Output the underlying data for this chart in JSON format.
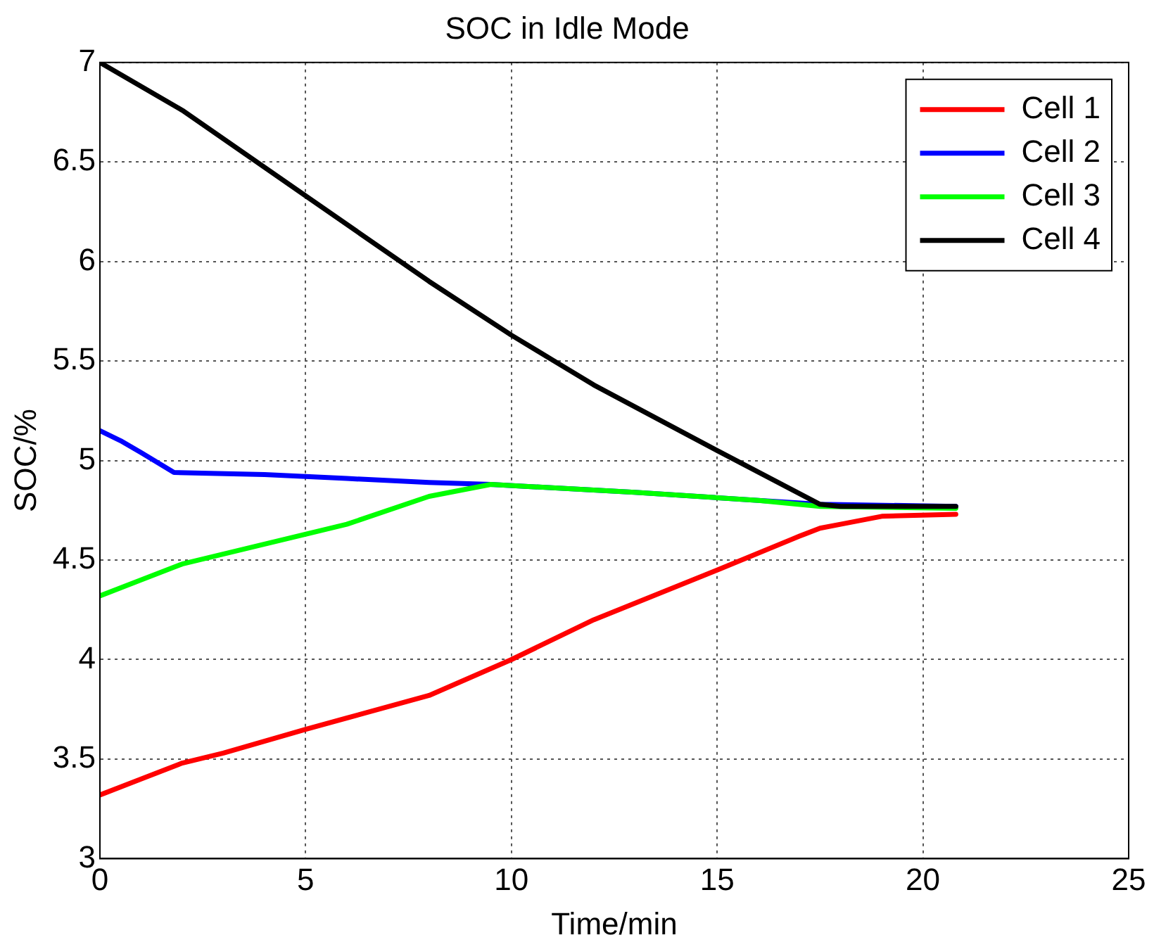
{
  "chart_data": {
    "type": "line",
    "title": "SOC in Idle Mode",
    "xlabel": "Time/min",
    "ylabel": "SOC/%",
    "xlim": [
      0,
      25
    ],
    "xticks": [
      0,
      5,
      10,
      15,
      20,
      25
    ],
    "ylim": [
      3,
      7
    ],
    "yticks": [
      3,
      3.5,
      4,
      4.5,
      5,
      5.5,
      6,
      6.5,
      7
    ],
    "grid": true,
    "legend": "top right",
    "marker": "none",
    "line_style": "solid",
    "series": [
      {
        "name": "Cell 1",
        "color": "#ff0000",
        "x": [
          0,
          1,
          2,
          3,
          5,
          8,
          10,
          12,
          15,
          17,
          17.5,
          18,
          19,
          20.8
        ],
        "values": [
          3.32,
          3.4,
          3.48,
          3.53,
          3.65,
          3.82,
          4.0,
          4.2,
          4.45,
          4.62,
          4.66,
          4.68,
          4.72,
          4.73
        ]
      },
      {
        "name": "Cell 2",
        "color": "#0000ff",
        "x": [
          0,
          0.5,
          1,
          1.8,
          4,
          6,
          8,
          9.5,
          13,
          16,
          17.5,
          20.8
        ],
        "values": [
          5.15,
          5.1,
          5.04,
          4.94,
          4.93,
          4.91,
          4.89,
          4.88,
          4.84,
          4.8,
          4.78,
          4.77
        ]
      },
      {
        "name": "Cell 3",
        "color": "#00ff00",
        "x": [
          0,
          1,
          2,
          4,
          6,
          8,
          9.5,
          13,
          16,
          17.5,
          20.8
        ],
        "values": [
          4.32,
          4.4,
          4.48,
          4.58,
          4.68,
          4.82,
          4.88,
          4.84,
          4.8,
          4.77,
          4.76
        ]
      },
      {
        "name": "Cell 4",
        "color": "#000000",
        "x": [
          0,
          2,
          5,
          8,
          10,
          12,
          15,
          17.5,
          18,
          20.8
        ],
        "values": [
          7.0,
          6.76,
          6.33,
          5.9,
          5.63,
          5.38,
          5.05,
          4.78,
          4.77,
          4.77
        ]
      }
    ]
  }
}
